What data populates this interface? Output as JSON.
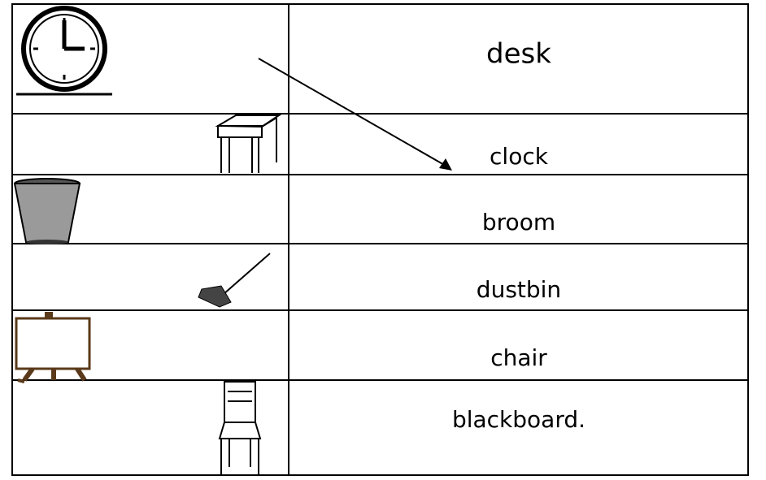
{
  "table": {
    "rows": [
      "desk",
      "clock",
      "broom",
      "dustbin",
      "chair",
      "blackboard."
    ]
  }
}
